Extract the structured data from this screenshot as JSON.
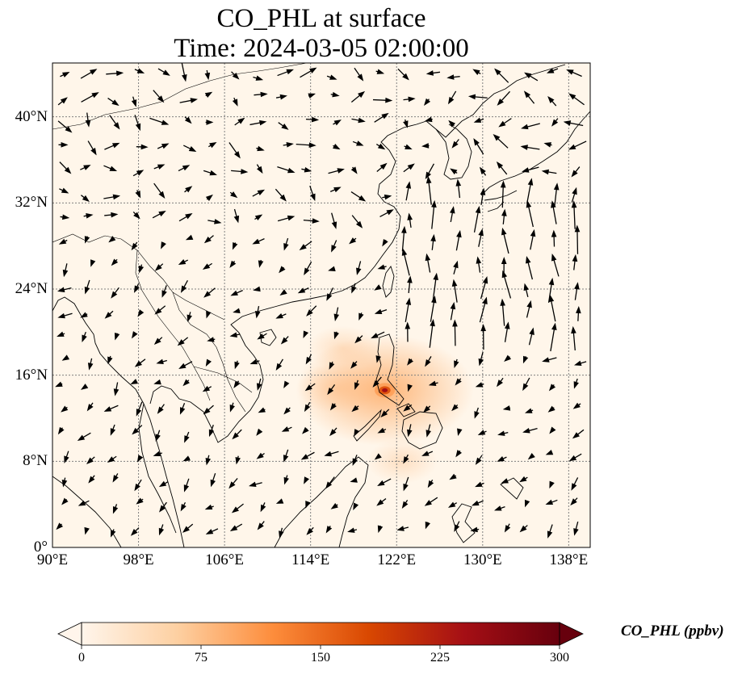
{
  "title": {
    "line1": "CO_PHL at surface",
    "line2": "Time: 2024-03-05 02:00:00"
  },
  "axes": {
    "lon_ticks": [
      "90°E",
      "98°E",
      "106°E",
      "114°E",
      "122°E",
      "130°E",
      "138°E"
    ],
    "lat_ticks": [
      "0°",
      "8°N",
      "16°N",
      "24°N",
      "32°N",
      "40°N"
    ]
  },
  "colorbar": {
    "label": "CO_PHL (ppbv)",
    "ticks": [
      "0",
      "75",
      "150",
      "225",
      "300"
    ],
    "colors": [
      "#fff5eb",
      "#fdd0a2",
      "#fd8d3c",
      "#d94801",
      "#a50f15",
      "#67000d"
    ]
  },
  "chart_data": {
    "type": "heatmap",
    "variable": "CO_PHL",
    "units": "ppbv",
    "lon_range": [
      90,
      140
    ],
    "lat_range": [
      0,
      45
    ],
    "color_range": [
      0,
      300
    ],
    "colormap": "OrRd",
    "colorbar_extend": "both",
    "grid": true,
    "plume_sources": [
      {
        "lon": 120.9,
        "lat": 14.6,
        "peak_ppbv": 250
      },
      {
        "lon": 116.5,
        "lat": 14.8,
        "peak_ppbv": 40
      },
      {
        "lon": 117.0,
        "lat": 18.5,
        "peak_ppbv": 20
      },
      {
        "lon": 122.5,
        "lat": 8.0,
        "peak_ppbv": 20
      }
    ],
    "wind_vectors": "quiver arrows over domain"
  }
}
